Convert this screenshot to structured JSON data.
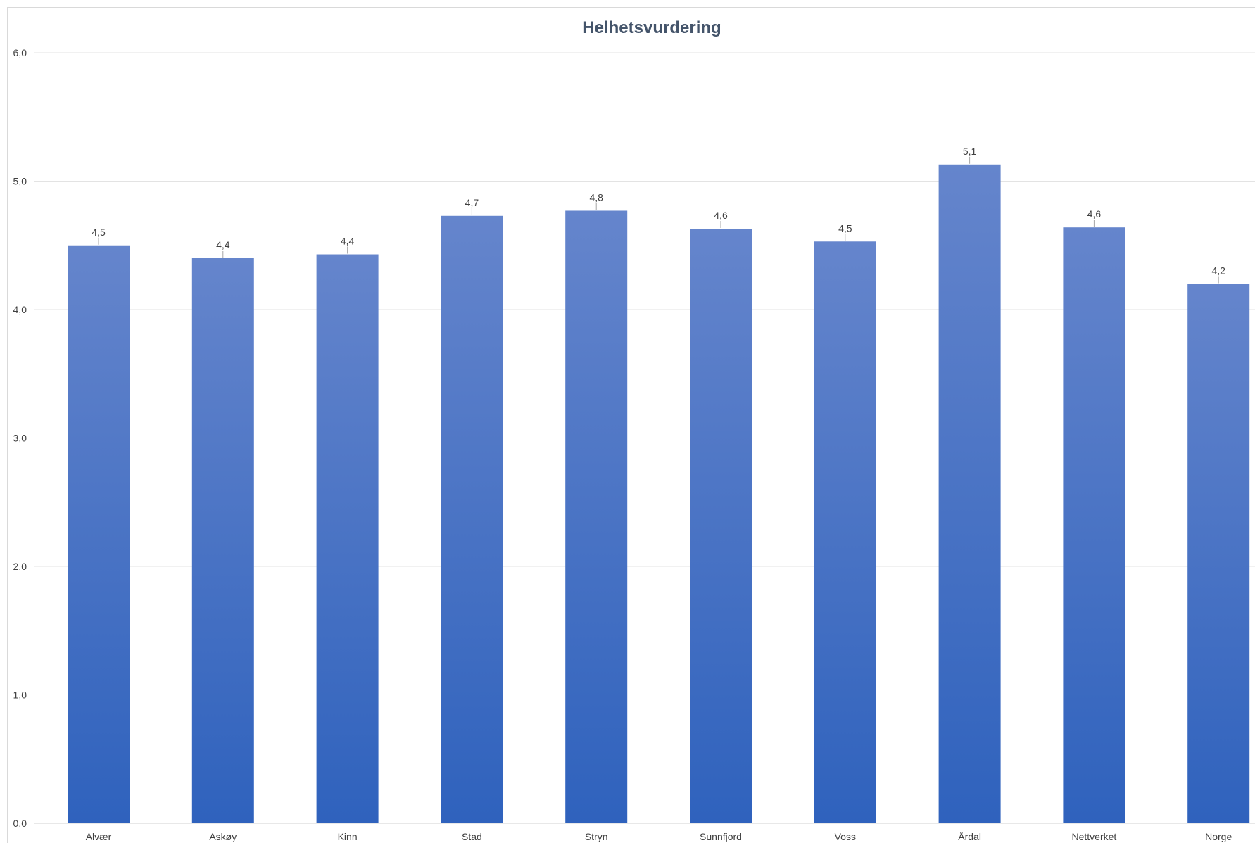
{
  "chart_data": {
    "type": "bar",
    "title": "Helhetsvurdering",
    "categories": [
      "Alvær",
      "Askøy",
      "Kinn",
      "Stad",
      "Stryn",
      "Sunnfjord",
      "Voss",
      "Årdal",
      "Nettverket",
      "Norge"
    ],
    "values": [
      4.5,
      4.4,
      4.43,
      4.73,
      4.77,
      4.63,
      4.53,
      5.13,
      4.64,
      4.2
    ],
    "data_labels": [
      "4,5",
      "4,4",
      "4,4",
      "4,7",
      "4,8",
      "4,6",
      "4,5",
      "5,1",
      "4,6",
      "4,2"
    ],
    "ylim": [
      0,
      6
    ],
    "yticks": [
      0,
      1,
      2,
      3,
      4,
      5,
      6
    ],
    "ytick_labels": [
      "0,0",
      "1,0",
      "2,0",
      "3,0",
      "4,0",
      "5,0",
      "6,0"
    ],
    "xlabel": "",
    "ylabel": "",
    "grid": true,
    "legend": "none",
    "colors": {
      "bar_top": "#6585cc",
      "bar_bottom": "#2f62bd",
      "title": "#44546a",
      "text": "#404040",
      "grid": "#e3e3e3"
    }
  }
}
